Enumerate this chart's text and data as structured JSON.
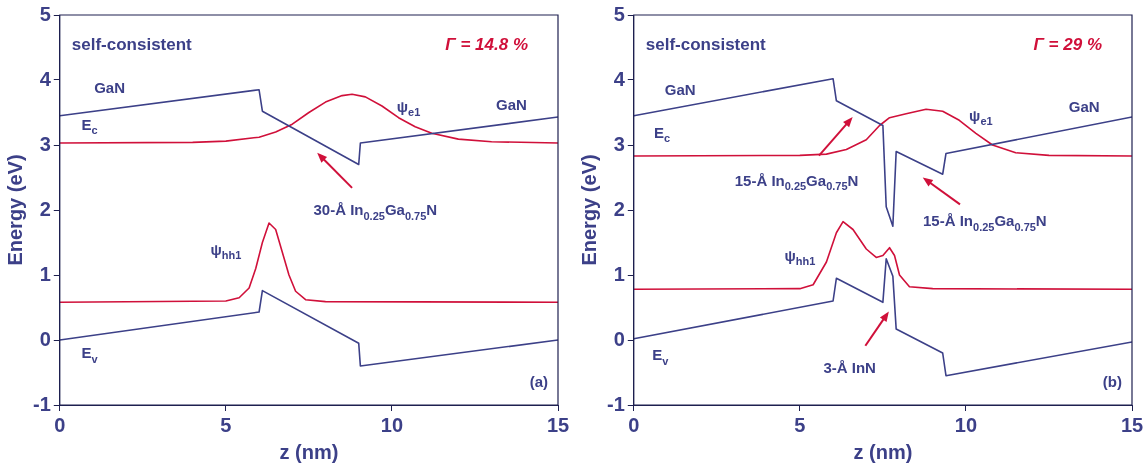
{
  "chart_data": [
    {
      "type": "line",
      "xlabel": "z (nm)",
      "ylabel": "Energy (eV)",
      "xlim": [
        0,
        15
      ],
      "xticks": [
        0,
        5,
        10,
        15
      ],
      "ylim": [
        -1,
        5
      ],
      "yticks": [
        -1,
        0,
        1,
        2,
        3,
        4,
        5
      ],
      "grid": false,
      "legend": false,
      "marker": "none",
      "line_style": "solid",
      "series": [
        {
          "name": "E$_{c}$",
          "color": "#3c4088",
          "x": [
            0,
            6,
            6.1,
            9,
            9.05,
            15
          ],
          "values": [
            3.45,
            3.85,
            3.52,
            2.7,
            3.03,
            3.43
          ]
        },
        {
          "name": "E$_{v}$",
          "color": "#3c4088",
          "x": [
            0,
            6,
            6.1,
            9,
            9.05,
            15
          ],
          "values": [
            0,
            0.43,
            0.76,
            -0.05,
            -0.4,
            0
          ]
        },
        {
          "name": "ψ$_{e1}$",
          "color": "#d0103a",
          "x": [
            0,
            4,
            5,
            6,
            6.5,
            7,
            7.5,
            8,
            8.5,
            8.8,
            9.2,
            9.7,
            10.2,
            10.7,
            11.2,
            12,
            13,
            15
          ],
          "values": [
            3.03,
            3.04,
            3.06,
            3.12,
            3.2,
            3.32,
            3.5,
            3.66,
            3.76,
            3.78,
            3.74,
            3.6,
            3.42,
            3.28,
            3.18,
            3.09,
            3.05,
            3.03
          ]
        },
        {
          "name": "ψ$_{hh1}$",
          "color": "#d0103a",
          "x": [
            0,
            5,
            5.4,
            5.7,
            5.9,
            6.1,
            6.3,
            6.5,
            6.7,
            6.9,
            7.1,
            7.4,
            8,
            15
          ],
          "values": [
            0.58,
            0.6,
            0.65,
            0.8,
            1.1,
            1.5,
            1.8,
            1.7,
            1.35,
            1,
            0.75,
            0.62,
            0.59,
            0.58
          ]
        }
      ],
      "annotations": [
        "self-consistent",
        "Γ = 14.8 %",
        "(a)",
        "GaN",
        "GaN",
        "30-Å In$_{0.25}$Ga$_{0.75}$N"
      ]
    },
    {
      "type": "line",
      "xlabel": "z (nm)",
      "ylabel": "Energy (eV)",
      "xlim": [
        0,
        15
      ],
      "xticks": [
        0,
        5,
        10,
        15
      ],
      "ylim": [
        -1,
        5
      ],
      "yticks": [
        -1,
        0,
        1,
        2,
        3,
        4,
        5
      ],
      "grid": false,
      "legend": false,
      "marker": "none",
      "line_style": "solid",
      "series": [
        {
          "name": "E$_{c}$",
          "color": "#3c4088",
          "x": [
            0,
            6,
            6.1,
            7.5,
            7.6,
            7.8,
            7.9,
            9.3,
            9.4,
            15
          ],
          "values": [
            3.45,
            4.02,
            3.68,
            3.3,
            2.05,
            1.75,
            2.9,
            2.55,
            2.87,
            3.43
          ]
        },
        {
          "name": "E$_{v}$",
          "color": "#3c4088",
          "x": [
            0,
            6,
            6.1,
            7.5,
            7.6,
            7.8,
            7.9,
            9.3,
            9.4,
            15
          ],
          "values": [
            0.02,
            0.6,
            0.95,
            0.58,
            1.25,
            0.98,
            0.17,
            -0.2,
            -0.55,
            -0.03
          ]
        },
        {
          "name": "ψ$_{e1}$",
          "color": "#d0103a",
          "x": [
            0,
            5,
            5.8,
            6.4,
            7,
            7.4,
            7.7,
            8.2,
            8.8,
            9.3,
            9.8,
            10.3,
            10.8,
            11.5,
            12.5,
            15
          ],
          "values": [
            2.83,
            2.84,
            2.86,
            2.93,
            3.08,
            3.3,
            3.42,
            3.48,
            3.55,
            3.52,
            3.38,
            3.18,
            3,
            2.88,
            2.84,
            2.83
          ]
        },
        {
          "name": "ψ$_{hh1}$",
          "color": "#d0103a",
          "x": [
            0,
            5,
            5.4,
            5.8,
            6.1,
            6.3,
            6.6,
            7,
            7.3,
            7.5,
            7.7,
            7.85,
            8,
            8.3,
            9,
            15
          ],
          "values": [
            0.78,
            0.79,
            0.85,
            1.2,
            1.65,
            1.82,
            1.7,
            1.4,
            1.27,
            1.3,
            1.42,
            1.3,
            1,
            0.82,
            0.79,
            0.78
          ]
        }
      ],
      "annotations": [
        "self-consistent",
        "Γ = 29 %",
        "(b)",
        "GaN",
        "GaN",
        "15-Å In$_{0.25}$Ga$_{0.75}$N",
        "15-Å In$_{0.25}$Ga$_{0.75}$N",
        "3-Å InN"
      ]
    }
  ]
}
